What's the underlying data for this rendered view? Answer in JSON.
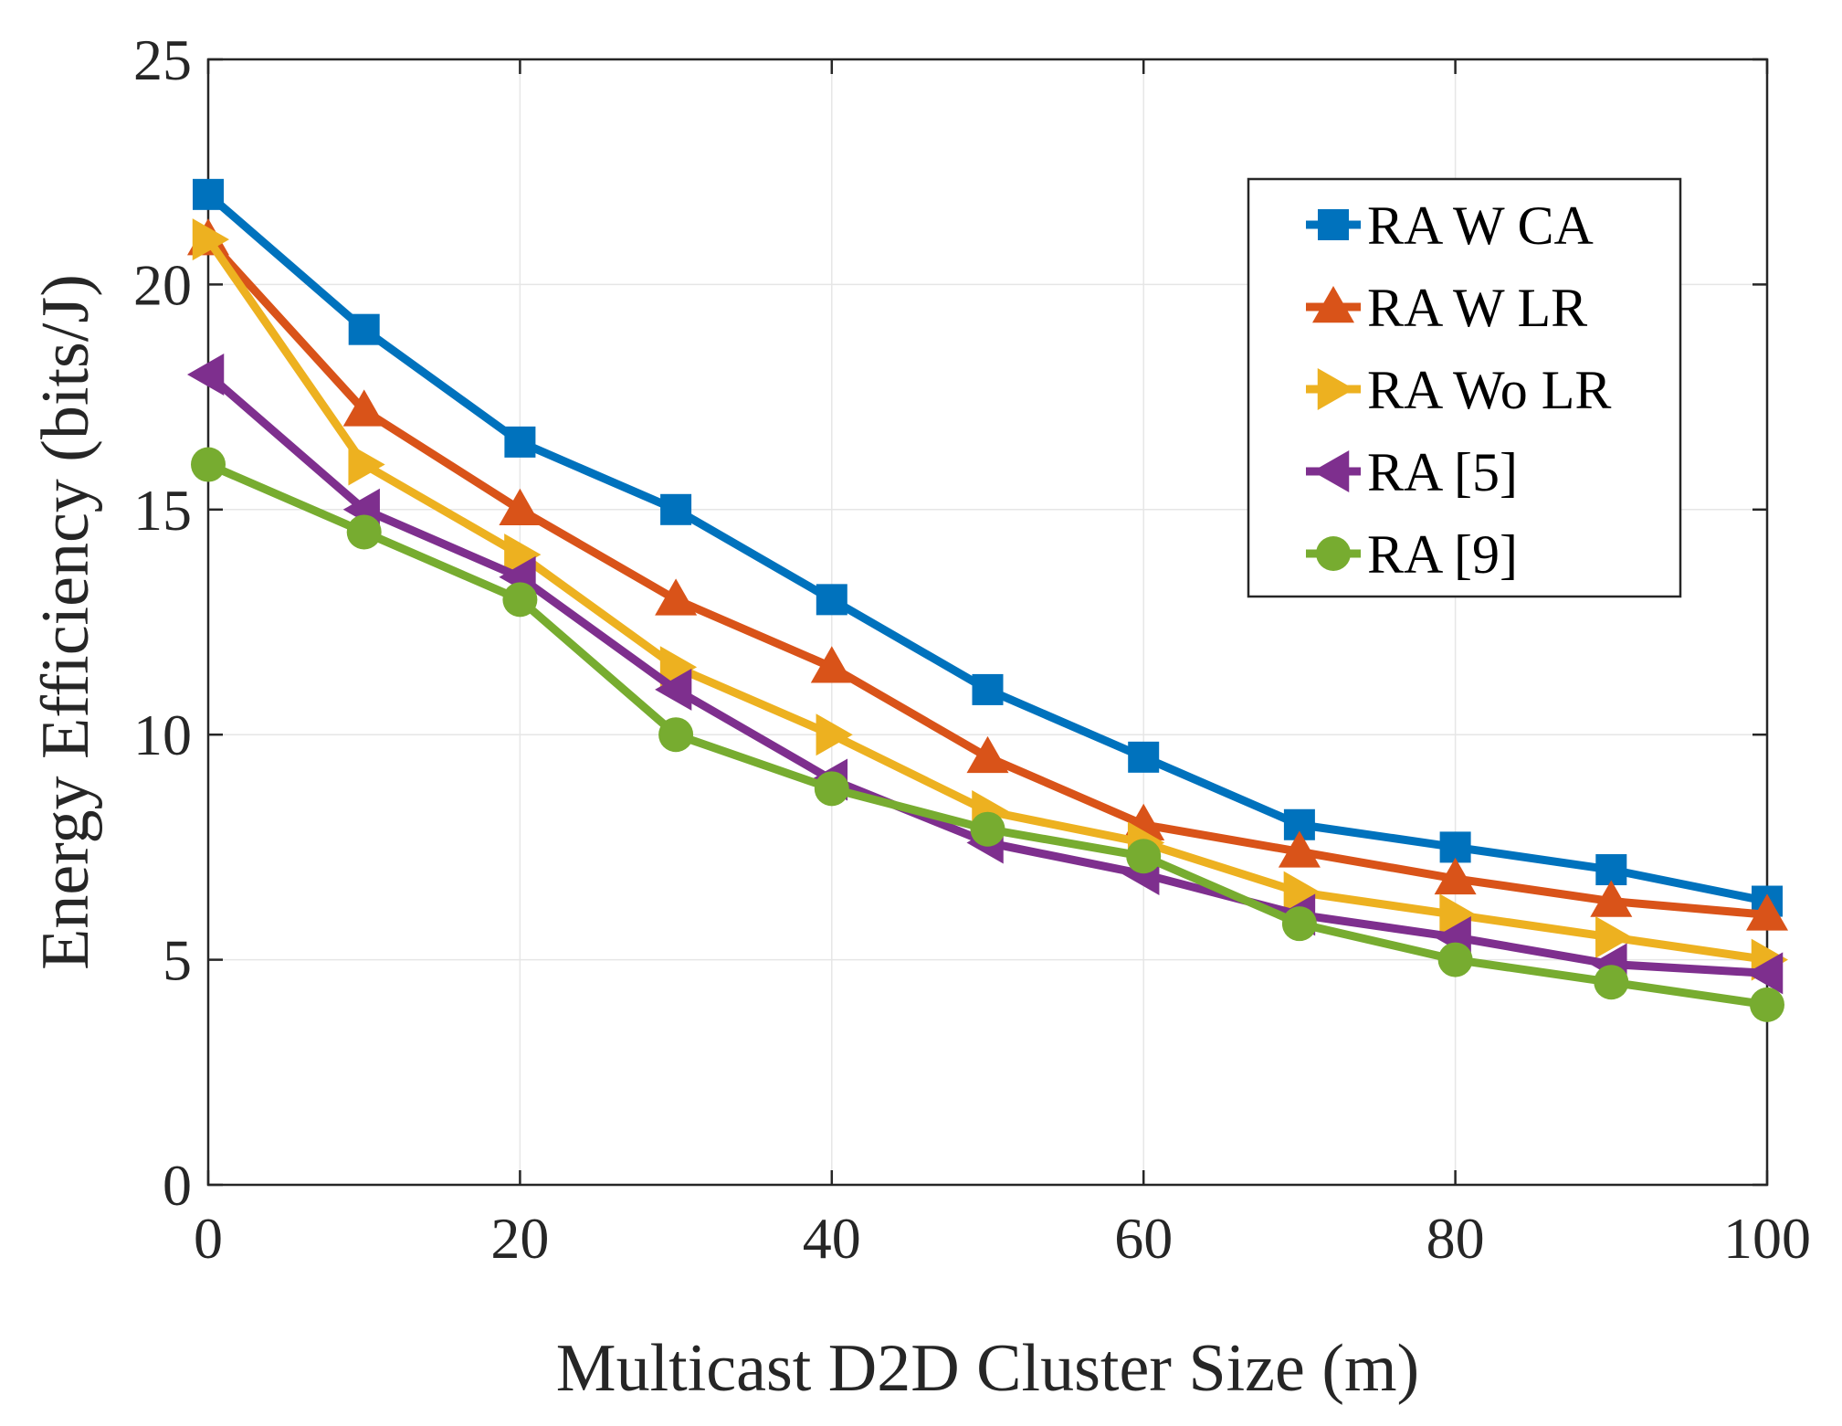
{
  "chart_data": {
    "type": "line",
    "title": "",
    "xlabel": "Multicast D2D Cluster Size (m)",
    "ylabel": "Energy Efficiency (bits/J)",
    "xlim": [
      0,
      100
    ],
    "ylim": [
      0,
      25
    ],
    "xticks": [
      0,
      20,
      40,
      60,
      80,
      100
    ],
    "yticks": [
      0,
      5,
      10,
      15,
      20,
      25
    ],
    "grid": true,
    "legend_position": "top-right",
    "x": [
      0,
      10,
      20,
      30,
      40,
      50,
      60,
      70,
      80,
      90,
      100
    ],
    "series": [
      {
        "name": "RA W CA",
        "color": "#0072BD",
        "marker": "square",
        "values": [
          22,
          19,
          16.5,
          15,
          13,
          11,
          9.5,
          8,
          7.5,
          7,
          6.3
        ]
      },
      {
        "name": "RA W LR",
        "color": "#D95319",
        "marker": "triangle-up",
        "values": [
          21,
          17.2,
          15,
          13,
          11.5,
          9.5,
          8,
          7.4,
          6.8,
          6.3,
          6
        ]
      },
      {
        "name": "RA Wo LR",
        "color": "#EDB120",
        "marker": "triangle-right",
        "values": [
          21,
          16,
          14,
          11.5,
          10,
          8.3,
          7.6,
          6.5,
          6,
          5.5,
          5
        ]
      },
      {
        "name": "RA [5]",
        "color": "#7E2F8E",
        "marker": "triangle-left",
        "values": [
          18,
          15,
          13.5,
          11,
          9,
          7.6,
          6.9,
          6,
          5.5,
          4.9,
          4.7
        ]
      },
      {
        "name": "RA [9]",
        "color": "#77AC30",
        "marker": "circle",
        "values": [
          16,
          14.5,
          13,
          10,
          8.8,
          7.9,
          7.3,
          5.8,
          5,
          4.5,
          4
        ]
      }
    ]
  }
}
